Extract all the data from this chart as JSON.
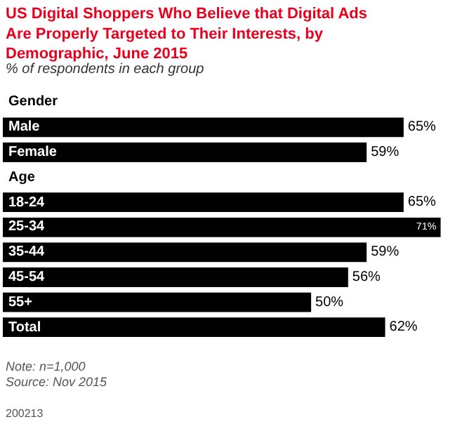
{
  "chart_data": {
    "type": "bar",
    "orientation": "horizontal",
    "title": "US Digital Shoppers Who Believe that Digital Ads Are Properly Targeted to Their Interests, by Demographic, June 2015",
    "subtitle": "% of respondents in each group",
    "categories": [
      "Gender",
      "Male",
      "Female",
      "Age",
      "18-24",
      "25-34",
      "35-44",
      "45-54",
      "55+",
      "Total"
    ],
    "values": [
      null,
      65,
      59,
      null,
      65,
      71,
      59,
      56,
      50,
      62
    ],
    "value_labels": [
      null,
      "65%",
      "59%",
      null,
      "65%",
      "71%",
      "59%",
      "56%",
      "50%",
      "62%"
    ],
    "color": "#000000",
    "annotations": [
      "Note: n=1,000",
      "Source: Nov 2015",
      "200213"
    ]
  }
}
